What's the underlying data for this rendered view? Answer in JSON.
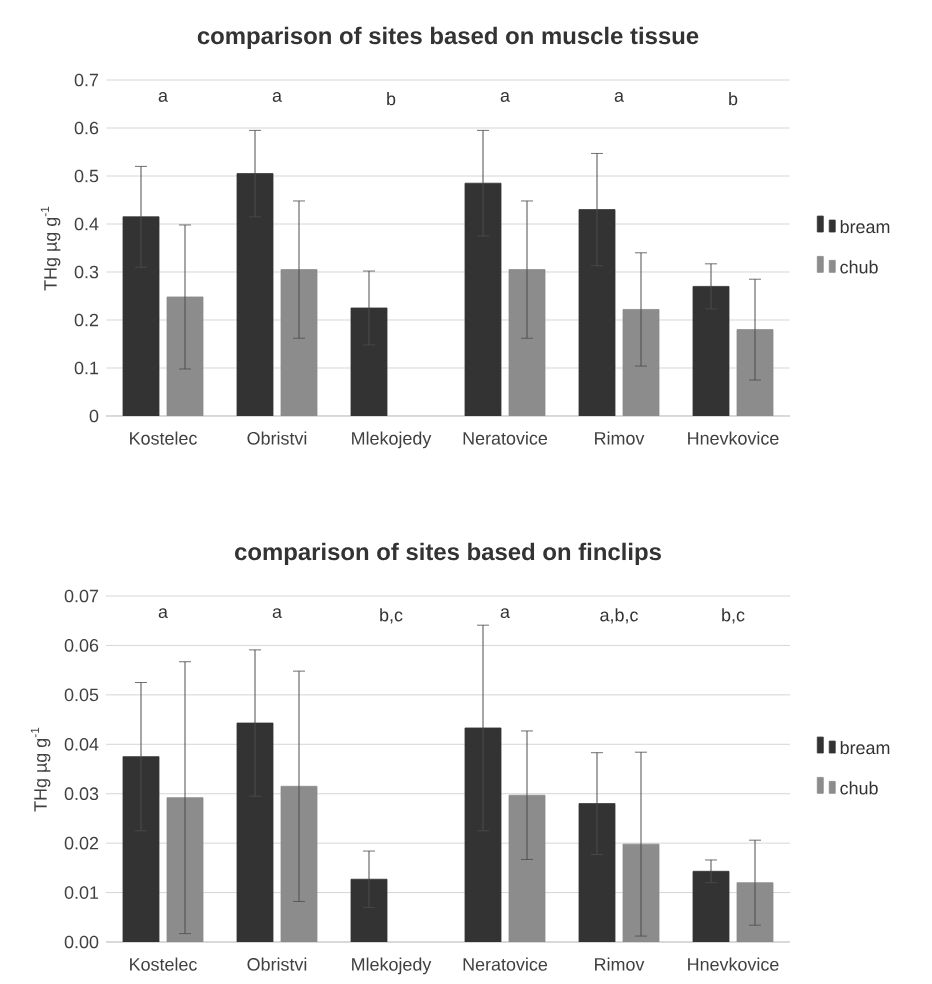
{
  "chart_data": [
    {
      "type": "bar",
      "title": "comparison  of sites based on muscle tissue",
      "ylabel": "THg µg g$^{-1}$",
      "categories": [
        "Kostelec",
        "Obristvi",
        "Mlekojedy",
        "Neratovice",
        "Rimov",
        "Hnevkovice"
      ],
      "series": [
        {
          "name": "bream",
          "color": "#333333",
          "values": [
            0.415,
            0.505,
            0.225,
            0.485,
            0.43,
            0.27
          ],
          "errors": [
            0.105,
            0.09,
            0.077,
            0.11,
            0.117,
            0.047
          ]
        },
        {
          "name": "chub",
          "color": "#8c8c8c",
          "values": [
            0.248,
            0.305,
            null,
            0.305,
            0.222,
            0.18
          ],
          "errors": [
            0.15,
            0.143,
            null,
            0.143,
            0.118,
            0.105
          ]
        }
      ],
      "ylim": [
        0,
        0.7
      ],
      "yticks": [
        0,
        0.1,
        0.2,
        0.3,
        0.4,
        0.5,
        0.6,
        0.7
      ],
      "grid": "y",
      "legend": "right",
      "annotations": [
        "a",
        "a",
        "b",
        "a",
        "a",
        "b"
      ]
    },
    {
      "type": "bar",
      "title": "comparison  of sites based on finclips",
      "ylabel": "THg µg g$^{-1}$",
      "categories": [
        "Kostelec",
        "Obristvi",
        "Mlekojedy",
        "Neratovice",
        "Rimov",
        "Hnevkovice"
      ],
      "series": [
        {
          "name": "bream",
          "color": "#333333",
          "values": [
            0.0375,
            0.0443,
            0.0127,
            0.0433,
            0.028,
            0.0143
          ],
          "errors": [
            0.015,
            0.0148,
            0.0057,
            0.0208,
            0.0103,
            0.0023
          ]
        },
        {
          "name": "chub",
          "color": "#8c8c8c",
          "values": [
            0.0292,
            0.0315,
            null,
            0.0297,
            0.0198,
            0.012
          ],
          "errors": [
            0.0275,
            0.0233,
            null,
            0.013,
            0.0186,
            0.0086
          ]
        }
      ],
      "ylim": [
        0,
        0.07
      ],
      "yticks": [
        {
          "value": 0,
          "label": "0.00"
        },
        {
          "value": 0.01,
          "label": "0.01"
        },
        {
          "value": 0.02,
          "label": "0.02"
        },
        {
          "value": 0.03,
          "label": "0.03"
        },
        {
          "value": 0.04,
          "label": "0.04"
        },
        {
          "value": 0.05,
          "label": "0.05"
        },
        {
          "value": 0.06,
          "label": "0.06"
        },
        {
          "value": 0.07,
          "label": "0.07"
        }
      ],
      "grid": "y",
      "legend": "right",
      "annotations": [
        "a",
        "a",
        "b,c",
        "a",
        "a,b,c",
        "b,c"
      ]
    }
  ]
}
